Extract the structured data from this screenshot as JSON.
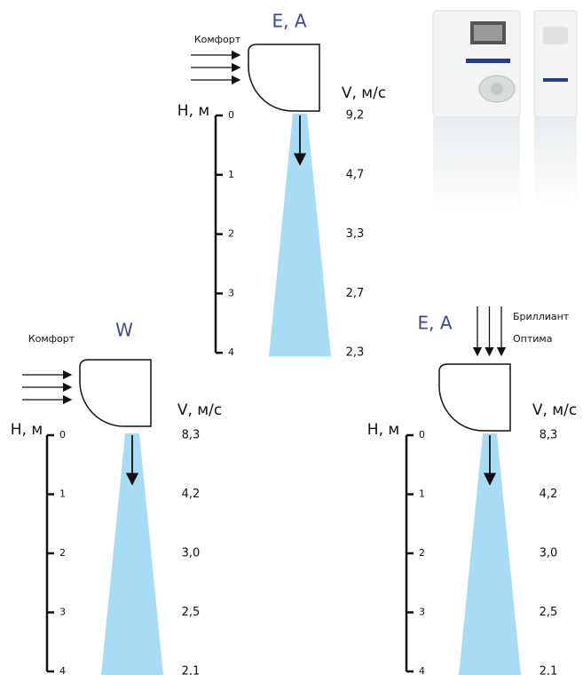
{
  "panels": [
    {
      "title": "E, A",
      "intake_labels": [
        "Комфорт"
      ],
      "height_label": "Н, м",
      "velocity_label": "V, м/с",
      "heights": [
        0,
        1,
        2,
        3,
        4
      ],
      "velocities": [
        "9,2",
        "4,7",
        "3,3",
        "2,7",
        "2,3"
      ]
    },
    {
      "title": "W",
      "intake_labels": [
        "Комфорт"
      ],
      "height_label": "Н, м",
      "velocity_label": "V, м/с",
      "heights": [
        0,
        1,
        2,
        3,
        4
      ],
      "velocities": [
        "8,3",
        "4,2",
        "3,0",
        "2,5",
        "2,1"
      ]
    },
    {
      "title": "E, A",
      "intake_labels": [
        "Бриллиант",
        "Оптима"
      ],
      "height_label": "Н, м",
      "velocity_label": "V, м/с",
      "heights": [
        0,
        1,
        2,
        3,
        4
      ],
      "velocities": [
        "8,3",
        "4,2",
        "3,0",
        "2,5",
        "2,1"
      ]
    }
  ]
}
